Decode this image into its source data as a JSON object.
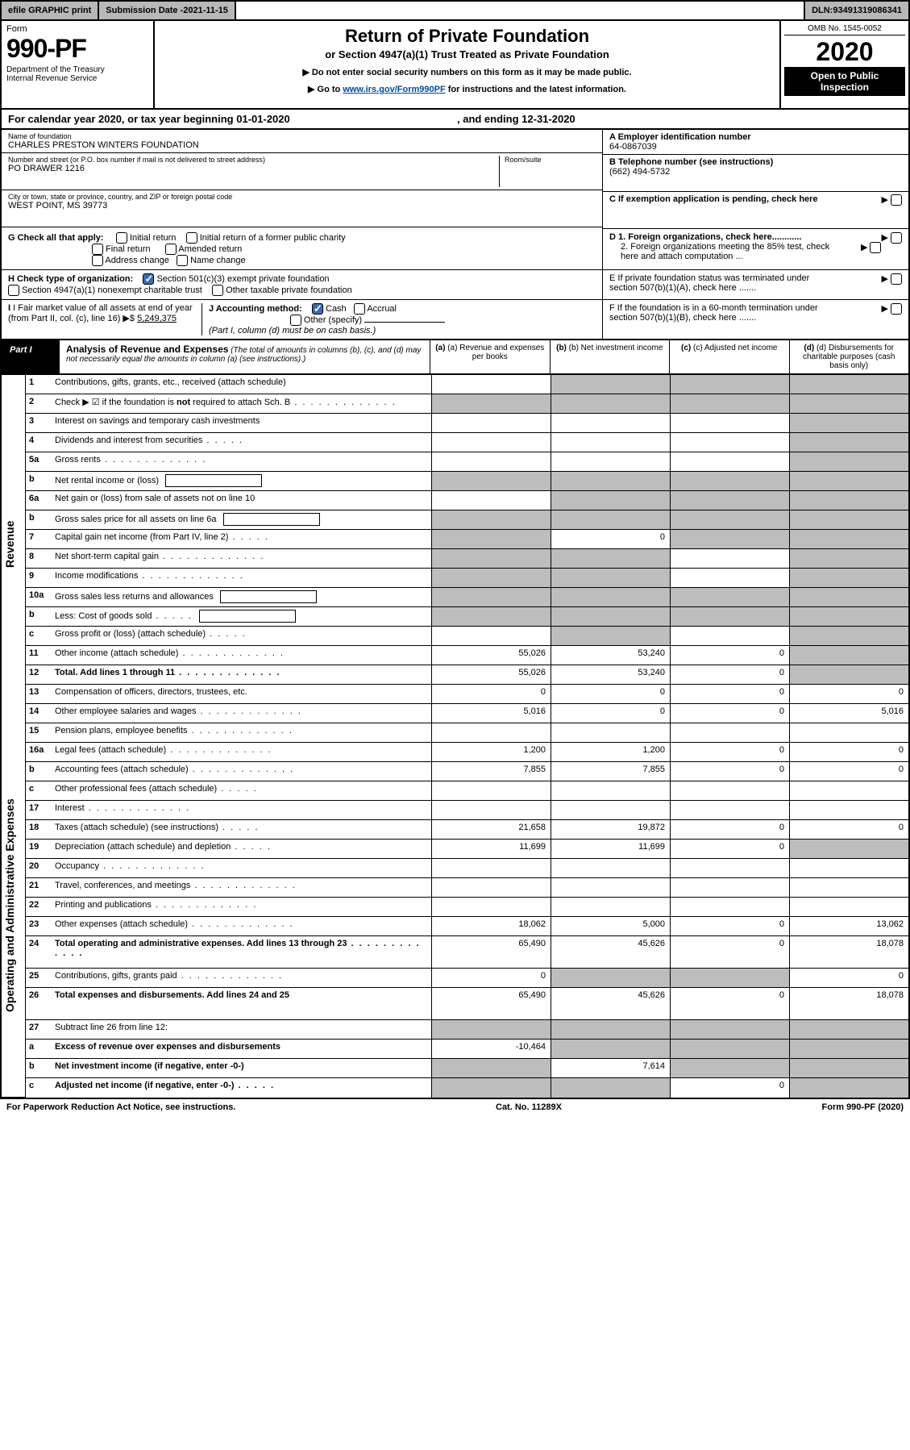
{
  "topbar": {
    "efile": "efile GRAPHIC print",
    "subdate_label": "Submission Date - ",
    "subdate": "2021-11-15",
    "dln_label": "DLN: ",
    "dln": "93491319086341"
  },
  "header": {
    "form_label": "Form",
    "form_num": "990-PF",
    "dept": "Department of the Treasury\nInternal Revenue Service",
    "title": "Return of Private Foundation",
    "subtitle": "or Section 4947(a)(1) Trust Treated as Private Foundation",
    "note1": "▶ Do not enter social security numbers on this form as it may be made public.",
    "note2_pre": "▶ Go to ",
    "note2_link": "www.irs.gov/Form990PF",
    "note2_post": " for instructions and the latest information.",
    "omb": "OMB No. 1545-0052",
    "year": "2020",
    "open": "Open to Public Inspection"
  },
  "calendar": {
    "pre": "For calendar year 2020, or tax year beginning ",
    "begin": "01-01-2020",
    "mid": ", and ending ",
    "end": "12-31-2020"
  },
  "info": {
    "name_lbl": "Name of foundation",
    "name": "CHARLES PRESTON WINTERS FOUNDATION",
    "addr_lbl": "Number and street (or P.O. box number if mail is not delivered to street address)",
    "addr": "PO DRAWER 1216",
    "room_lbl": "Room/suite",
    "city_lbl": "City or town, state or province, country, and ZIP or foreign postal code",
    "city": "WEST POINT, MS  39773",
    "a_lbl": "A Employer identification number",
    "a_val": "64-0867039",
    "b_lbl": "B Telephone number (see instructions)",
    "b_val": "(662) 494-5732",
    "c_lbl": "C If exemption application is pending, check here",
    "d1": "D 1. Foreign organizations, check here............",
    "d2": "2. Foreign organizations meeting the 85% test, check here and attach computation ...",
    "e": "E  If private foundation status was terminated under section 507(b)(1)(A), check here .......",
    "f": "F  If the foundation is in a 60-month termination under section 507(b)(1)(B), check here .......",
    "g_lbl": "G Check all that apply:",
    "g_opts": [
      "Initial return",
      "Initial return of a former public charity",
      "Final return",
      "Amended return",
      "Address change",
      "Name change"
    ],
    "h_lbl": "H Check type of organization:",
    "h_opt1": "Section 501(c)(3) exempt private foundation",
    "h_opt2": "Section 4947(a)(1) nonexempt charitable trust",
    "h_opt3": "Other taxable private foundation",
    "i_lbl": "I Fair market value of all assets at end of year (from Part II, col. (c), line 16)",
    "i_val": "5,249,375",
    "j_lbl": "J Accounting method:",
    "j_cash": "Cash",
    "j_accr": "Accrual",
    "j_other": "Other (specify)",
    "j_note": "(Part I, column (d) must be on cash basis.)"
  },
  "part1": {
    "tag": "Part I",
    "title": "Analysis of Revenue and Expenses",
    "note": "(The total of amounts in columns (b), (c), and (d) may not necessarily equal the amounts in column (a) (see instructions).)",
    "col_a": "(a)  Revenue and expenses per books",
    "col_b": "(b)  Net investment income",
    "col_c": "(c)  Adjusted net income",
    "col_d": "(d)  Disbursements for charitable purposes (cash basis only)"
  },
  "sidebars": [
    "Revenue",
    "Operating and Administrative Expenses"
  ],
  "rows": [
    {
      "n": "1",
      "t": "Contributions, gifts, grants, etc., received (attach schedule)",
      "a": "",
      "b": "g",
      "c": "g",
      "d": "g"
    },
    {
      "n": "2",
      "t": "Check ▶ ☑ if the foundation is <b>not</b> required to attach Sch. B",
      "dots": true,
      "a": "g",
      "b": "g",
      "c": "g",
      "d": "g",
      "bold": false
    },
    {
      "n": "3",
      "t": "Interest on savings and temporary cash investments",
      "a": "",
      "b": "",
      "c": "",
      "d": "g"
    },
    {
      "n": "4",
      "t": "Dividends and interest from securities",
      "dots": "short",
      "a": "",
      "b": "",
      "c": "",
      "d": "g"
    },
    {
      "n": "5a",
      "t": "Gross rents",
      "dots": true,
      "a": "",
      "b": "",
      "c": "",
      "d": "g"
    },
    {
      "n": "b",
      "t": "Net rental income or (loss)",
      "box": true,
      "a": "g",
      "b": "g",
      "c": "g",
      "d": "g"
    },
    {
      "n": "6a",
      "t": "Net gain or (loss) from sale of assets not on line 10",
      "a": "",
      "b": "g",
      "c": "g",
      "d": "g"
    },
    {
      "n": "b",
      "t": "Gross sales price for all assets on line 6a",
      "box": true,
      "a": "g",
      "b": "g",
      "c": "g",
      "d": "g"
    },
    {
      "n": "7",
      "t": "Capital gain net income (from Part IV, line 2)",
      "dots": "short",
      "a": "g",
      "b": "0",
      "c": "g",
      "d": "g"
    },
    {
      "n": "8",
      "t": "Net short-term capital gain",
      "dots": true,
      "a": "g",
      "b": "g",
      "c": "",
      "d": "g"
    },
    {
      "n": "9",
      "t": "Income modifications",
      "dots": true,
      "a": "g",
      "b": "g",
      "c": "",
      "d": "g"
    },
    {
      "n": "10a",
      "t": "Gross sales less returns and allowances",
      "box": true,
      "a": "g",
      "b": "g",
      "c": "g",
      "d": "g"
    },
    {
      "n": "b",
      "t": "Less: Cost of goods sold",
      "dots": "short",
      "box": true,
      "a": "g",
      "b": "g",
      "c": "g",
      "d": "g"
    },
    {
      "n": "c",
      "t": "Gross profit or (loss) (attach schedule)",
      "dots": "short",
      "a": "",
      "b": "g",
      "c": "",
      "d": "g"
    },
    {
      "n": "11",
      "t": "Other income (attach schedule)",
      "dots": true,
      "a": "55,026",
      "b": "53,240",
      "c": "0",
      "d": "g"
    },
    {
      "n": "12",
      "t": "<b>Total.</b> Add lines 1 through 11",
      "dots": true,
      "a": "55,026",
      "b": "53,240",
      "c": "0",
      "d": "g",
      "bold": true
    },
    {
      "n": "13",
      "t": "Compensation of officers, directors, trustees, etc.",
      "a": "0",
      "b": "0",
      "c": "0",
      "d": "0"
    },
    {
      "n": "14",
      "t": "Other employee salaries and wages",
      "dots": true,
      "a": "5,016",
      "b": "0",
      "c": "0",
      "d": "5,016"
    },
    {
      "n": "15",
      "t": "Pension plans, employee benefits",
      "dots": true,
      "a": "",
      "b": "",
      "c": "",
      "d": ""
    },
    {
      "n": "16a",
      "t": "Legal fees (attach schedule)",
      "dots": true,
      "a": "1,200",
      "b": "1,200",
      "c": "0",
      "d": "0"
    },
    {
      "n": "b",
      "t": "Accounting fees (attach schedule)",
      "dots": true,
      "a": "7,855",
      "b": "7,855",
      "c": "0",
      "d": "0"
    },
    {
      "n": "c",
      "t": "Other professional fees (attach schedule)",
      "dots": "short",
      "a": "",
      "b": "",
      "c": "",
      "d": ""
    },
    {
      "n": "17",
      "t": "Interest",
      "dots": true,
      "a": "",
      "b": "",
      "c": "",
      "d": ""
    },
    {
      "n": "18",
      "t": "Taxes (attach schedule) (see instructions)",
      "dots": "short",
      "a": "21,658",
      "b": "19,872",
      "c": "0",
      "d": "0"
    },
    {
      "n": "19",
      "t": "Depreciation (attach schedule) and depletion",
      "dots": "short",
      "a": "11,699",
      "b": "11,699",
      "c": "0",
      "d": "g"
    },
    {
      "n": "20",
      "t": "Occupancy",
      "dots": true,
      "a": "",
      "b": "",
      "c": "",
      "d": ""
    },
    {
      "n": "21",
      "t": "Travel, conferences, and meetings",
      "dots": true,
      "a": "",
      "b": "",
      "c": "",
      "d": ""
    },
    {
      "n": "22",
      "t": "Printing and publications",
      "dots": true,
      "a": "",
      "b": "",
      "c": "",
      "d": ""
    },
    {
      "n": "23",
      "t": "Other expenses (attach schedule)",
      "dots": true,
      "a": "18,062",
      "b": "5,000",
      "c": "0",
      "d": "13,062"
    },
    {
      "n": "24",
      "t": "<b>Total operating and administrative expenses.</b> Add lines 13 through 23",
      "dots": true,
      "a": "65,490",
      "b": "45,626",
      "c": "0",
      "d": "18,078",
      "bold": true,
      "tall": true
    },
    {
      "n": "25",
      "t": "Contributions, gifts, grants paid",
      "dots": true,
      "a": "0",
      "b": "g",
      "c": "g",
      "d": "0"
    },
    {
      "n": "26",
      "t": "<b>Total expenses and disbursements.</b> Add lines 24 and 25",
      "a": "65,490",
      "b": "45,626",
      "c": "0",
      "d": "18,078",
      "bold": true,
      "tall": true
    },
    {
      "n": "27",
      "t": "Subtract line 26 from line 12:",
      "a": "g",
      "b": "g",
      "c": "g",
      "d": "g"
    },
    {
      "n": "a",
      "t": "<b>Excess of revenue over expenses and disbursements</b>",
      "a": "-10,464",
      "b": "g",
      "c": "g",
      "d": "g",
      "bold": true
    },
    {
      "n": "b",
      "t": "<b>Net investment income</b> (if negative, enter -0-)",
      "a": "g",
      "b": "7,614",
      "c": "g",
      "d": "g",
      "bold": true
    },
    {
      "n": "c",
      "t": "<b>Adjusted net income</b> (if negative, enter -0-)",
      "dots": "short",
      "a": "g",
      "b": "g",
      "c": "0",
      "d": "g",
      "bold": true
    }
  ],
  "footer": {
    "left": "For Paperwork Reduction Act Notice, see instructions.",
    "mid": "Cat. No. 11289X",
    "right": "Form 990-PF (2020)"
  }
}
